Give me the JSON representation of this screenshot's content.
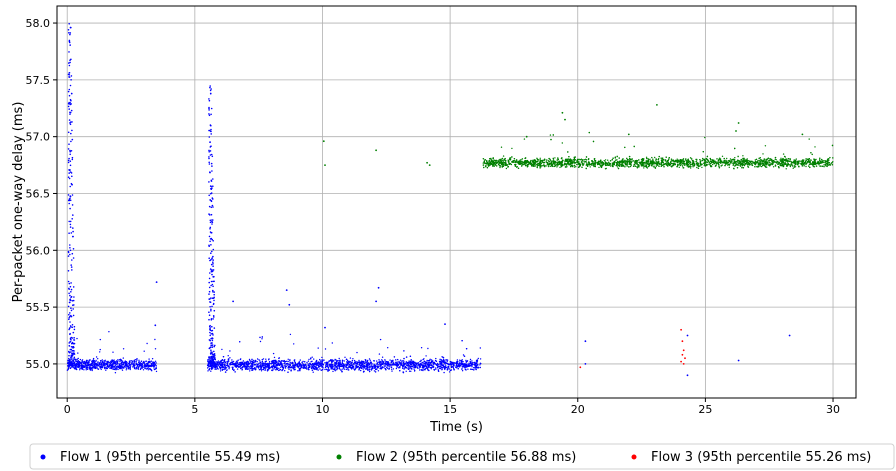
{
  "chart_data": {
    "type": "scatter",
    "title": "",
    "xlabel": "Time (s)",
    "ylabel": "Per-packet one-way delay (ms)",
    "xlim": [
      -0.4,
      30.9
    ],
    "ylim": [
      54.7,
      58.15
    ],
    "xticks": [
      0,
      5,
      10,
      15,
      20,
      25,
      30
    ],
    "yticks": [
      55.0,
      55.5,
      56.0,
      56.5,
      57.0,
      57.5,
      58.0
    ],
    "grid": true,
    "legend_placement": "bottom",
    "series": [
      {
        "name": "Flow 1 (95th percentile 55.49 ms)",
        "color": "#0000ff",
        "segments": [
          {
            "x_range": [
              0.0,
              3.5
            ],
            "y_center": 54.99,
            "y_spread": 0.09
          },
          {
            "x_range": [
              5.5,
              16.2
            ],
            "y_center": 54.99,
            "y_spread": 0.1
          }
        ],
        "spikes": [
          {
            "x": 0.05,
            "y_range": [
              55.0,
              58.0
            ]
          },
          {
            "x": 5.55,
            "y_range": [
              55.0,
              57.5
            ]
          }
        ],
        "outliers": [
          [
            3.5,
            55.72
          ],
          [
            3.45,
            55.34
          ],
          [
            6.5,
            55.55
          ],
          [
            8.6,
            55.65
          ],
          [
            8.7,
            55.52
          ],
          [
            10.1,
            55.32
          ],
          [
            12.2,
            55.67
          ],
          [
            12.1,
            55.55
          ],
          [
            14.8,
            55.35
          ],
          [
            20.3,
            55.2
          ],
          [
            20.3,
            55.0
          ],
          [
            24.3,
            55.25
          ],
          [
            24.3,
            54.9
          ],
          [
            26.3,
            55.03
          ],
          [
            28.3,
            55.25
          ]
        ]
      },
      {
        "name": "Flow 2 (95th percentile 56.88 ms)",
        "color": "#008000",
        "segments": [
          {
            "x_range": [
              16.3,
              30.0
            ],
            "y_center": 56.77,
            "y_spread": 0.08
          }
        ],
        "outliers": [
          [
            10.05,
            56.96
          ],
          [
            10.1,
            56.75
          ],
          [
            12.1,
            56.88
          ],
          [
            14.1,
            56.77
          ],
          [
            14.2,
            56.75
          ],
          [
            19.4,
            57.21
          ],
          [
            19.5,
            57.15
          ],
          [
            23.1,
            57.28
          ],
          [
            26.3,
            57.12
          ],
          [
            26.2,
            57.05
          ],
          [
            22.0,
            57.02
          ],
          [
            18.0,
            57.0
          ],
          [
            28.8,
            57.02
          ]
        ]
      },
      {
        "name": "Flow 3 (95th percentile 55.26 ms)",
        "color": "#ff0000",
        "points": [
          [
            24.05,
            55.3
          ],
          [
            24.1,
            55.2
          ],
          [
            24.15,
            55.12
          ],
          [
            24.1,
            55.08
          ],
          [
            24.2,
            55.05
          ],
          [
            24.05,
            55.02
          ],
          [
            24.15,
            55.0
          ],
          [
            20.1,
            54.97
          ]
        ]
      }
    ]
  }
}
